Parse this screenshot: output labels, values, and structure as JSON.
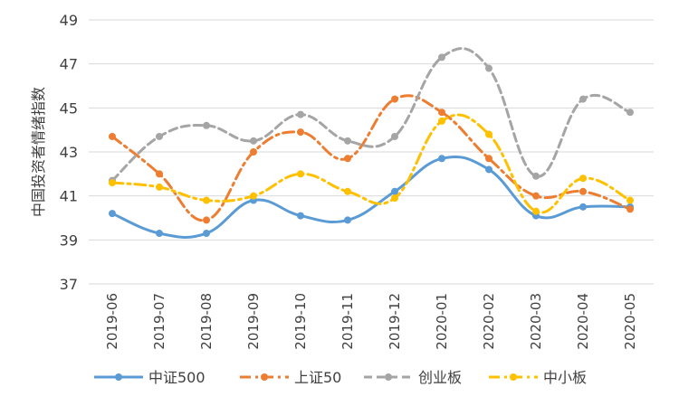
{
  "chart_data": {
    "type": "line",
    "title": "",
    "xlabel": "",
    "ylabel": "中国投资者情绪指数",
    "ylim": [
      37,
      49
    ],
    "yticks": [
      37,
      39,
      41,
      43,
      45,
      47,
      49
    ],
    "grid": "horizontal",
    "smooth": true,
    "legend_position": "bottom",
    "categories": [
      "2019-06",
      "2019-07",
      "2019-08",
      "2019-09",
      "2019-10",
      "2019-11",
      "2019-12",
      "2020-01",
      "2020-02",
      "2020-03",
      "2020-04",
      "2020-05"
    ],
    "series": [
      {
        "name": "中证500",
        "color": "#5B9BD5",
        "dash": "solid",
        "values": [
          40.2,
          39.3,
          39.3,
          40.8,
          40.1,
          39.9,
          41.2,
          42.7,
          42.2,
          40.1,
          40.5,
          40.5
        ]
      },
      {
        "name": "上证50",
        "color": "#ED7D31",
        "dash": "dashdot",
        "values": [
          43.7,
          42.0,
          39.9,
          43.0,
          43.9,
          42.7,
          45.4,
          44.8,
          42.7,
          41.0,
          41.2,
          40.4
        ]
      },
      {
        "name": "创业板",
        "color": "#A5A5A5",
        "dash": "dash",
        "values": [
          41.7,
          43.7,
          44.2,
          43.5,
          44.7,
          43.5,
          43.7,
          47.3,
          46.8,
          41.9,
          45.4,
          44.8
        ]
      },
      {
        "name": "中小板",
        "color": "#FFC000",
        "dash": "dashdot",
        "values": [
          41.6,
          41.4,
          40.8,
          41.0,
          42.0,
          41.2,
          40.9,
          44.4,
          43.8,
          40.3,
          41.8,
          40.8
        ]
      }
    ]
  }
}
